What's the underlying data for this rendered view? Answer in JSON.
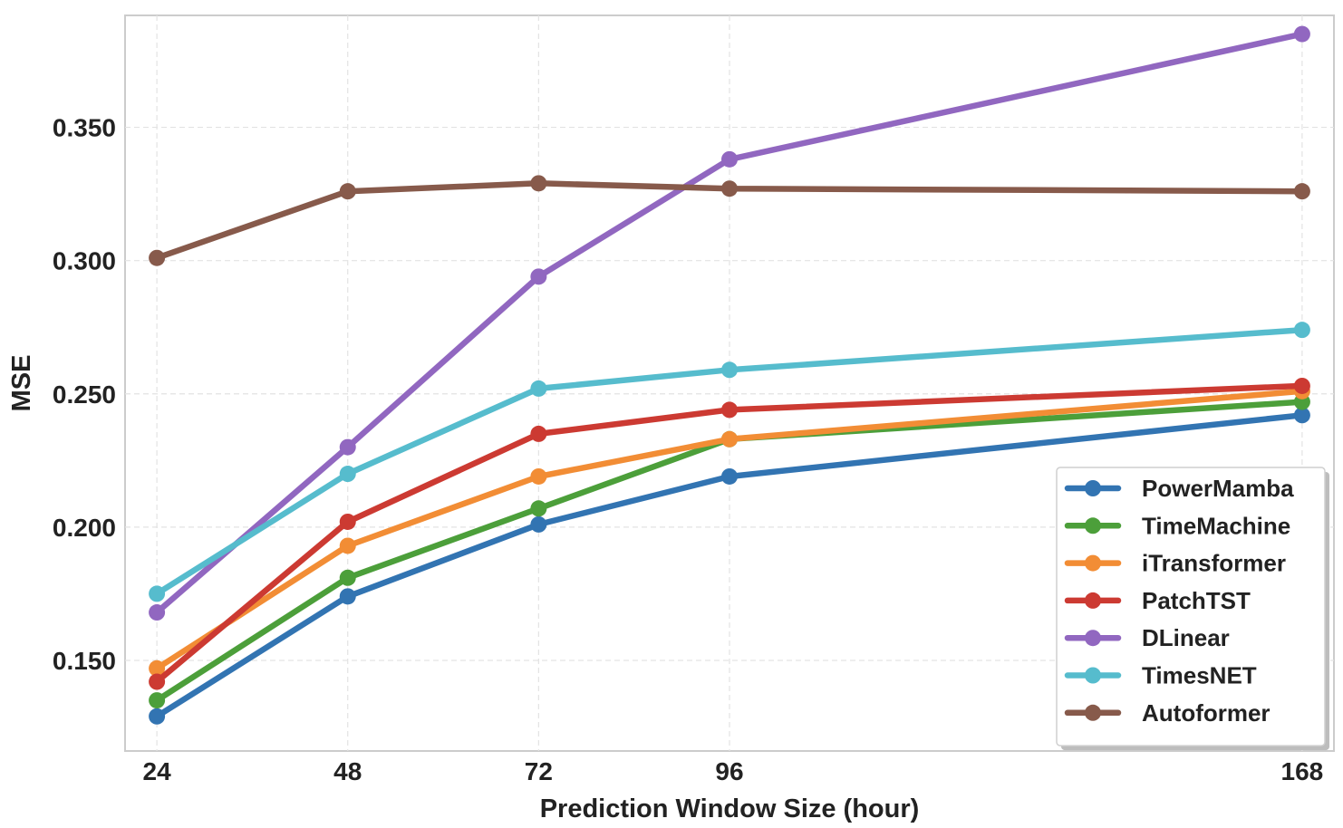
{
  "chart_data": {
    "type": "line",
    "x": [
      24,
      48,
      72,
      96,
      168
    ],
    "xticks": [
      "24",
      "48",
      "72",
      "96",
      "168"
    ],
    "xlabel": "Prediction Window Size (hour)",
    "ylabel": "MSE",
    "xlim": [
      20,
      172
    ],
    "ylim": [
      0.116,
      0.392
    ],
    "yticks": [
      0.15,
      0.2,
      0.25,
      0.3,
      0.35
    ],
    "ytick_labels": [
      "0.150",
      "0.200",
      "0.250",
      "0.300",
      "0.350"
    ],
    "grid": true,
    "legend_position": "lower-right",
    "series": [
      {
        "name": "PowerMamba",
        "color": "#3274b2",
        "values": [
          0.129,
          0.174,
          0.201,
          0.219,
          0.242
        ]
      },
      {
        "name": "TimeMachine",
        "color": "#4c9f3a",
        "values": [
          0.135,
          0.181,
          0.207,
          0.233,
          0.247
        ]
      },
      {
        "name": "iTransformer",
        "color": "#f28d35",
        "values": [
          0.147,
          0.193,
          0.219,
          0.233,
          0.251
        ]
      },
      {
        "name": "PatchTST",
        "color": "#cc3a32",
        "values": [
          0.142,
          0.202,
          0.235,
          0.244,
          0.253
        ]
      },
      {
        "name": "DLinear",
        "color": "#9167c0",
        "values": [
          0.168,
          0.23,
          0.294,
          0.338,
          0.385
        ]
      },
      {
        "name": "TimesNET",
        "color": "#56bccd",
        "values": [
          0.175,
          0.22,
          0.252,
          0.259,
          0.274
        ]
      },
      {
        "name": "Autoformer",
        "color": "#875a4b",
        "values": [
          0.301,
          0.326,
          0.329,
          0.327,
          0.326
        ]
      }
    ]
  }
}
